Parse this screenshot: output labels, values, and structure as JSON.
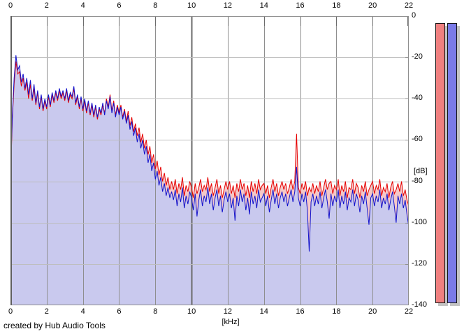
{
  "app": {
    "footer_credit": "created by Hub Audio Tools"
  },
  "chart_data": {
    "type": "area",
    "title": "",
    "xlabel": "[kHz]",
    "ylabel": "[dB]",
    "xlim": [
      0,
      22
    ],
    "ylim": [
      -140,
      0
    ],
    "grid": true,
    "x_ticks": [
      0,
      2,
      4,
      6,
      8,
      10,
      12,
      14,
      16,
      18,
      20,
      22
    ],
    "y_ticks": [
      0,
      -20,
      -40,
      -60,
      -80,
      -100,
      -120,
      -140
    ],
    "x_start": 0,
    "x_step": 0.1,
    "series": [
      {
        "name": "red-channel-spectrum",
        "color": "#e60000",
        "fill": "#f5c8c8",
        "values": [
          -80,
          -50,
          -33,
          -22,
          -28,
          -27,
          -34,
          -30,
          -36,
          -32,
          -40,
          -33,
          -41,
          -35,
          -43,
          -37,
          -45,
          -39,
          -46,
          -41,
          -45,
          -39,
          -44,
          -38,
          -42,
          -37,
          -41,
          -36,
          -40,
          -37,
          -41,
          -36,
          -42,
          -38,
          -40,
          -35,
          -43,
          -39,
          -45,
          -40,
          -46,
          -41,
          -47,
          -42,
          -48,
          -43,
          -49,
          -44,
          -50,
          -45,
          -48,
          -43,
          -47,
          -40,
          -44,
          -38,
          -46,
          -41,
          -48,
          -43,
          -47,
          -43,
          -49,
          -45,
          -51,
          -46,
          -53,
          -49,
          -56,
          -52,
          -58,
          -54,
          -61,
          -57,
          -64,
          -60,
          -67,
          -63,
          -71,
          -67,
          -74,
          -70,
          -77,
          -73,
          -80,
          -76,
          -82,
          -78,
          -84,
          -80,
          -84,
          -79,
          -86,
          -81,
          -84,
          -78,
          -87,
          -82,
          -85,
          -80,
          -83,
          -88,
          -81,
          -86,
          -83,
          -79,
          -85,
          -82,
          -84,
          -78,
          -85,
          -81,
          -87,
          -83,
          -79,
          -86,
          -82,
          -88,
          -84,
          -80,
          -84,
          -80,
          -86,
          -82,
          -88,
          -81,
          -85,
          -79,
          -84,
          -81,
          -87,
          -82,
          -88,
          -80,
          -85,
          -81,
          -86,
          -79,
          -84,
          -82,
          -81,
          -86,
          -82,
          -88,
          -83,
          -79,
          -85,
          -81,
          -87,
          -83,
          -80,
          -84,
          -81,
          -86,
          -83,
          -79,
          -84,
          -80,
          -57,
          -83,
          -86,
          -81,
          -84,
          -80,
          -87,
          -83,
          -85,
          -81,
          -86,
          -82,
          -85,
          -80,
          -87,
          -83,
          -79,
          -84,
          -81,
          -80,
          -86,
          -82,
          -84,
          -79,
          -87,
          -82,
          -85,
          -80,
          -88,
          -83,
          -84,
          -79,
          -86,
          -81,
          -83,
          -88,
          -82,
          -85,
          -80,
          -87,
          -84,
          -82,
          -80,
          -86,
          -82,
          -84,
          -79,
          -87,
          -83,
          -85,
          -81,
          -88,
          -83,
          -80,
          -86,
          -84,
          -81,
          -85,
          -80,
          -87,
          -84,
          -89,
          -92
        ]
      },
      {
        "name": "blue-channel-spectrum",
        "color": "#1212cc",
        "fill": "#c9c9ee",
        "values": [
          -78,
          -48,
          -30,
          -19,
          -26,
          -24,
          -32,
          -28,
          -35,
          -30,
          -38,
          -31,
          -40,
          -33,
          -42,
          -36,
          -44,
          -38,
          -45,
          -40,
          -44,
          -38,
          -43,
          -37,
          -41,
          -36,
          -40,
          -35,
          -39,
          -36,
          -40,
          -35,
          -41,
          -37,
          -39,
          -34,
          -42,
          -38,
          -44,
          -39,
          -45,
          -40,
          -46,
          -41,
          -47,
          -42,
          -48,
          -43,
          -49,
          -44,
          -47,
          -42,
          -48,
          -41,
          -45,
          -39,
          -47,
          -42,
          -49,
          -44,
          -48,
          -44,
          -50,
          -46,
          -52,
          -48,
          -55,
          -51,
          -58,
          -54,
          -61,
          -57,
          -64,
          -60,
          -67,
          -63,
          -71,
          -67,
          -75,
          -71,
          -79,
          -75,
          -82,
          -78,
          -85,
          -81,
          -87,
          -83,
          -88,
          -85,
          -89,
          -84,
          -92,
          -86,
          -90,
          -83,
          -93,
          -87,
          -91,
          -85,
          -88,
          -94,
          -86,
          -97,
          -89,
          -84,
          -92,
          -87,
          -90,
          -83,
          -91,
          -86,
          -94,
          -88,
          -84,
          -92,
          -87,
          -95,
          -89,
          -85,
          -90,
          -86,
          -93,
          -88,
          -99,
          -87,
          -92,
          -84,
          -90,
          -86,
          -94,
          -88,
          -96,
          -85,
          -91,
          -87,
          -93,
          -84,
          -90,
          -88,
          -86,
          -92,
          -87,
          -95,
          -89,
          -84,
          -91,
          -86,
          -93,
          -88,
          -85,
          -90,
          -86,
          -92,
          -88,
          -84,
          -90,
          -85,
          -73,
          -88,
          -92,
          -86,
          -90,
          -85,
          -94,
          -114,
          -90,
          -86,
          -92,
          -87,
          -91,
          -85,
          -93,
          -88,
          -84,
          -90,
          -98,
          -86,
          -92,
          -87,
          -90,
          -84,
          -93,
          -87,
          -91,
          -85,
          -94,
          -88,
          -90,
          -84,
          -92,
          -86,
          -89,
          -95,
          -87,
          -91,
          -85,
          -93,
          -101,
          -88,
          -86,
          -92,
          -87,
          -90,
          -84,
          -93,
          -88,
          -91,
          -86,
          -94,
          -89,
          -85,
          -92,
          -100,
          -87,
          -91,
          -86,
          -93,
          -89,
          -96,
          -102
        ]
      }
    ]
  },
  "meters": {
    "track_color": "#c3c3c3",
    "border_color": "#151515",
    "bars": [
      {
        "name": "red-channel-level",
        "color": "#f08080"
      },
      {
        "name": "blue-channel-level",
        "color": "#7b7be8"
      }
    ]
  },
  "style": {
    "grid_vertical_color": "#8e8e8e",
    "grid_vertical_major_color": "#6b6b6b",
    "grid_horizontal_color": "#bdbdbd",
    "plot_border_color": "#8e8e8e"
  }
}
